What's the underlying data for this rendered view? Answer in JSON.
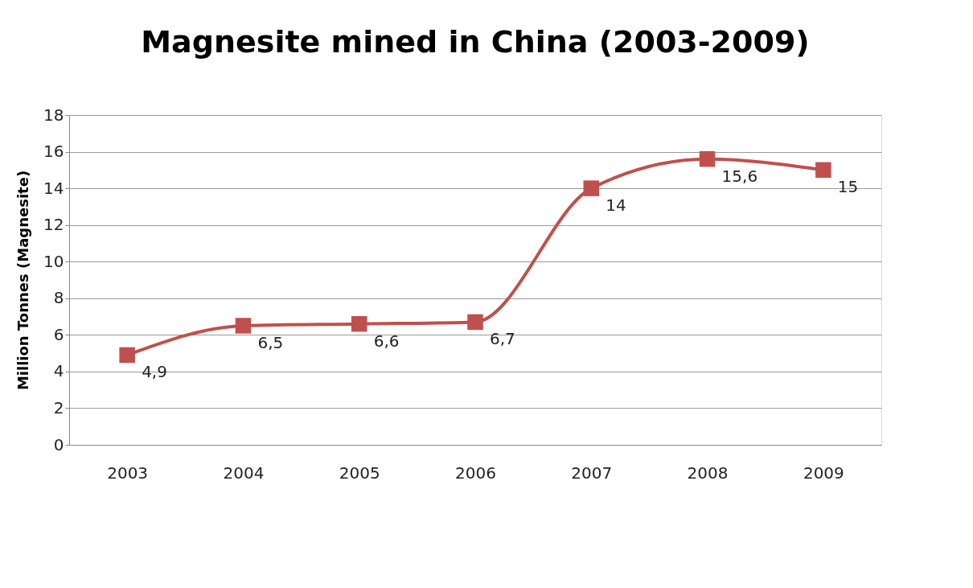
{
  "chart_data": {
    "type": "line",
    "title": "Magnesite mined in China (2003-2009)",
    "ylabel": "Million Tonnes (Magnesite)",
    "categories": [
      "2003",
      "2004",
      "2005",
      "2006",
      "2007",
      "2008",
      "2009"
    ],
    "series": [
      {
        "color": "#c0504d",
        "values": [
          4.9,
          6.5,
          6.6,
          6.7,
          14,
          15.6,
          15
        ],
        "value_labels": [
          "4,9",
          "6,5",
          "6,6",
          "6,7",
          "14",
          "15,6",
          "15"
        ]
      }
    ],
    "ylim": [
      0,
      18
    ],
    "yticks": [
      0,
      2,
      4,
      6,
      8,
      10,
      12,
      14,
      16,
      18
    ],
    "grid": "y",
    "marker": "square",
    "line_style": "solid"
  }
}
